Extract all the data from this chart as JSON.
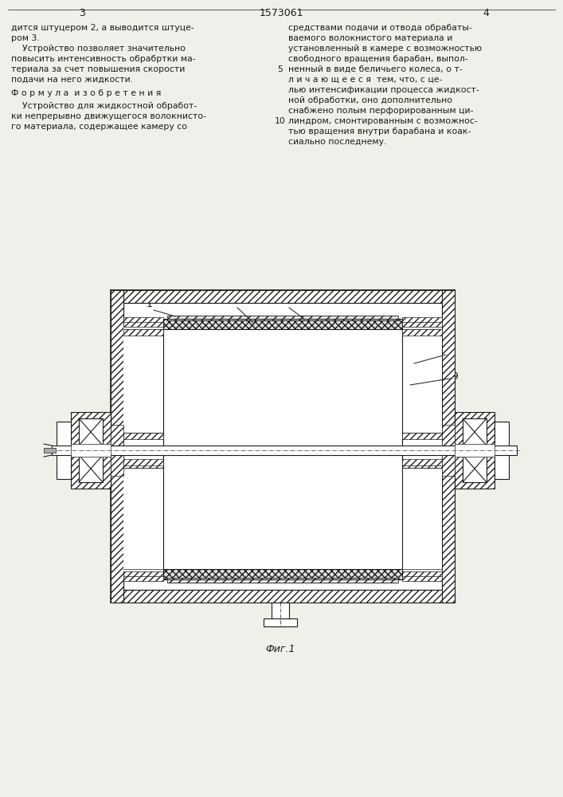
{
  "page_number_left": "3",
  "patent_number": "1573061",
  "page_number_right": "4",
  "text_left": [
    "дится штуцером 2, а выводится штуце-",
    "ром 3.",
    "    Устройство позволяет значительно",
    "повысить интенсивность обрабртки ма-",
    "териала за счет повышения скорости",
    "подачи на него жидкости."
  ],
  "formula_header": "Ф о р м у л а  и з о б р е т е н и я",
  "text_left2": [
    "    Устройство для жидкостной обработ-",
    "ки непрерывно движущегося волокнисто-",
    "го материала, содержащее камеру со"
  ],
  "line_numbers": [
    "5",
    "10"
  ],
  "text_right": [
    "средствами подачи и отвода обрабаты-",
    "ваемого волокнистого материала и",
    "установленный в камере с возможностью",
    "свободного вращения барабан, выпол-",
    "ненный в виде беличьего колеса, о т-",
    "л и ч а ю щ е е с я  тем, что, с це-",
    "лью интенсификации процесса жидкост-",
    "ной обработки, оно дополнительно",
    "снабжено полым перфорированным ци-",
    "линдром, смонтированным с возможнос-",
    "тью вращения внутри барабана и коак-",
    "сиально последнему."
  ],
  "fig_caption": "Фиг.1",
  "bg_color": "#f0f0eb",
  "line_color": "#1a1a1a",
  "text_color": "#1a1a1a"
}
